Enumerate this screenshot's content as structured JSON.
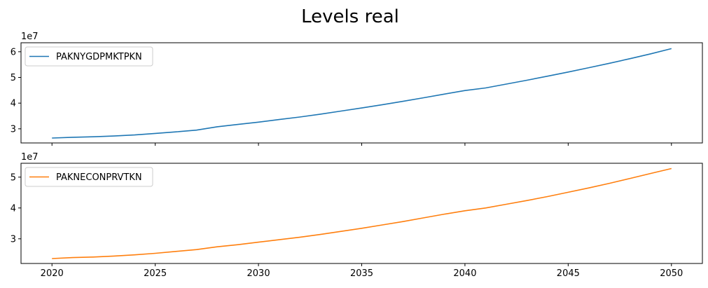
{
  "figure": {
    "title": "Levels real"
  },
  "chart_data": [
    {
      "type": "line",
      "title": "",
      "xlabel": "",
      "ylabel": "",
      "y_offset_label": "1e7",
      "xlim": [
        2018.5,
        2051.5
      ],
      "ylim": [
        2.45,
        6.35
      ],
      "x_ticks": [
        2020,
        2025,
        2030,
        2035,
        2040,
        2045,
        2050
      ],
      "x_tick_labels_shown": false,
      "y_ticks": [
        3,
        4,
        5,
        6
      ],
      "y_tick_labels": [
        "3",
        "4",
        "5",
        "6"
      ],
      "grid": false,
      "legend": "upper left",
      "series": [
        {
          "name": "PAKNYGDPMKTPKN",
          "color": "#1f77b4",
          "x": [
            2020,
            2021,
            2022,
            2023,
            2024,
            2025,
            2026,
            2027,
            2028,
            2029,
            2030,
            2031,
            2032,
            2033,
            2034,
            2035,
            2036,
            2037,
            2038,
            2039,
            2040,
            2041,
            2042,
            2043,
            2044,
            2045,
            2046,
            2047,
            2048,
            2049,
            2050
          ],
          "values": [
            2.64,
            2.67,
            2.69,
            2.72,
            2.76,
            2.82,
            2.88,
            2.95,
            3.08,
            3.17,
            3.26,
            3.36,
            3.46,
            3.57,
            3.69,
            3.81,
            3.94,
            4.07,
            4.21,
            4.35,
            4.49,
            4.59,
            4.74,
            4.89,
            5.05,
            5.21,
            5.38,
            5.55,
            5.73,
            5.92,
            6.12
          ]
        }
      ]
    },
    {
      "type": "line",
      "title": "",
      "xlabel": "",
      "ylabel": "",
      "y_offset_label": "1e7",
      "xlim": [
        2018.5,
        2051.5
      ],
      "ylim": [
        2.2,
        5.45
      ],
      "x_ticks": [
        2020,
        2025,
        2030,
        2035,
        2040,
        2045,
        2050
      ],
      "x_tick_labels": [
        "2020",
        "2025",
        "2030",
        "2035",
        "2040",
        "2045",
        "2050"
      ],
      "y_ticks": [
        3,
        4,
        5
      ],
      "y_tick_labels": [
        "3",
        "4",
        "5"
      ],
      "grid": false,
      "legend": "upper left",
      "series": [
        {
          "name": "PAKNECONPRVTKN",
          "color": "#ff7f0e",
          "x": [
            2020,
            2021,
            2022,
            2023,
            2024,
            2025,
            2026,
            2027,
            2028,
            2029,
            2030,
            2031,
            2032,
            2033,
            2034,
            2035,
            2036,
            2037,
            2038,
            2039,
            2040,
            2041,
            2042,
            2043,
            2044,
            2045,
            2046,
            2047,
            2048,
            2049,
            2050
          ],
          "values": [
            2.36,
            2.39,
            2.41,
            2.44,
            2.48,
            2.53,
            2.59,
            2.65,
            2.74,
            2.81,
            2.89,
            2.97,
            3.05,
            3.14,
            3.24,
            3.34,
            3.45,
            3.56,
            3.68,
            3.8,
            3.91,
            4.0,
            4.12,
            4.24,
            4.37,
            4.51,
            4.65,
            4.8,
            4.96,
            5.12,
            5.28
          ]
        }
      ]
    }
  ]
}
